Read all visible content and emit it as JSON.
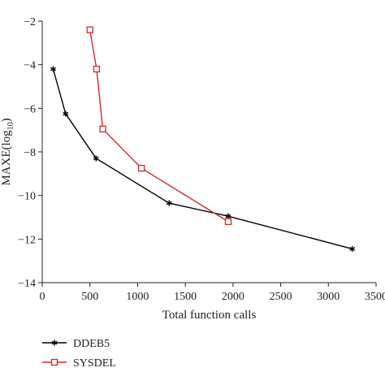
{
  "chart_data": {
    "type": "line",
    "title": "",
    "xlabel": "Total function calls",
    "ylabel": "MAXE(log",
    "ylabel_subscript": "10",
    "ylabel_suffix": ")",
    "xlim": [
      0,
      3500
    ],
    "ylim": [
      -14,
      -2
    ],
    "x_ticks": [
      0,
      500,
      1000,
      1500,
      2000,
      2500,
      3000,
      3500
    ],
    "x_tick_labels": [
      "0",
      "500",
      "1000",
      "1500",
      "2000",
      "2500",
      "3000",
      "3500"
    ],
    "y_ticks": [
      -2,
      -4,
      -6,
      -8,
      -10,
      -12,
      -14
    ],
    "y_tick_labels": [
      "−2",
      "−4",
      "−6",
      "−8",
      "−10",
      "−12",
      "−14"
    ],
    "grid": false,
    "legend_position": "bottom-left",
    "series": [
      {
        "name": "DDEB5",
        "color": "#000000",
        "marker": "asterisk",
        "x": [
          115,
          245,
          565,
          1330,
          1950,
          3250
        ],
        "y": [
          -4.2,
          -6.25,
          -8.3,
          -10.35,
          -10.95,
          -12.45
        ]
      },
      {
        "name": "SYSDEL",
        "color": "#cc2a2a",
        "marker": "open-square",
        "x": [
          500,
          570,
          635,
          1040,
          1950
        ],
        "y": [
          -2.4,
          -4.2,
          -6.95,
          -8.75,
          -11.2
        ]
      }
    ]
  }
}
